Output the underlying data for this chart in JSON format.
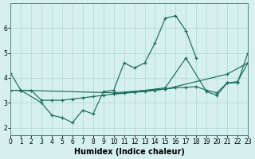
{
  "xlabel": "Humidex (Indice chaleur)",
  "bg_color": "#d5f0ee",
  "line_color": "#1a6b62",
  "grid_color": "#b0d8d4",
  "ylim": [
    1.7,
    7.0
  ],
  "xlim": [
    0,
    23
  ],
  "yticks": [
    2,
    3,
    4,
    5,
    6
  ],
  "xticks": [
    0,
    1,
    2,
    3,
    4,
    5,
    6,
    7,
    8,
    9,
    10,
    11,
    12,
    13,
    14,
    15,
    16,
    17,
    18,
    19,
    20,
    21,
    22,
    23
  ],
  "line1_x": [
    0,
    1,
    3,
    4,
    5,
    6,
    7,
    8,
    9,
    10,
    11,
    12,
    13,
    14,
    15,
    16,
    17,
    18
  ],
  "line1_y": [
    4.2,
    3.5,
    3.0,
    2.5,
    2.4,
    2.2,
    2.7,
    2.55,
    3.45,
    3.5,
    4.6,
    4.4,
    4.6,
    5.4,
    6.4,
    6.5,
    5.9,
    4.8
  ],
  "line2_x": [
    0,
    1,
    2,
    3,
    4,
    5,
    6,
    7,
    8,
    9,
    10,
    11,
    12,
    13,
    14,
    15,
    16,
    17,
    18,
    19,
    20,
    21,
    22,
    23
  ],
  "line2_y": [
    3.5,
    3.5,
    3.5,
    3.1,
    3.1,
    3.1,
    3.15,
    3.2,
    3.25,
    3.3,
    3.35,
    3.38,
    3.42,
    3.45,
    3.5,
    3.55,
    3.6,
    3.62,
    3.65,
    3.5,
    3.4,
    3.8,
    3.85,
    4.6
  ],
  "line3_x": [
    0,
    1,
    10,
    15,
    21,
    23
  ],
  "line3_y": [
    3.5,
    3.5,
    3.4,
    3.55,
    4.15,
    4.6
  ],
  "line4_x": [
    10,
    15,
    17,
    19,
    20,
    21,
    22,
    23
  ],
  "line4_y": [
    3.35,
    3.6,
    4.8,
    3.45,
    3.3,
    3.8,
    3.8,
    5.0
  ]
}
